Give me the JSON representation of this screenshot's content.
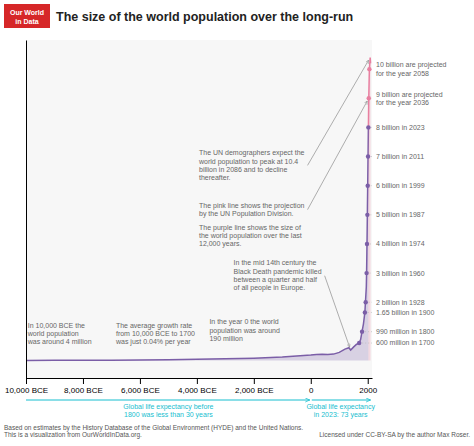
{
  "chart_data": {
    "type": "area",
    "title": "The size of the world population over the long-run",
    "xlim": [
      -10000,
      2150
    ],
    "ylim": [
      -600000000,
      11000000000
    ],
    "xticks": [
      {
        "value": -10000,
        "label": "10,000 BCE"
      },
      {
        "value": -8000,
        "label": "8,000 BCE"
      },
      {
        "value": -6000,
        "label": "6,000 BCE"
      },
      {
        "value": -4000,
        "label": "4,000 BCE"
      },
      {
        "value": -2000,
        "label": "2,000 BCE"
      },
      0,
      2000
    ],
    "tick_labels": "x",
    "grid": false,
    "series": [
      {
        "type": "area",
        "color": "#7b5ea7",
        "x": [
          -10000,
          -9000,
          -8000,
          -7000,
          -6000,
          -5000,
          -4000,
          -3000,
          -2000,
          -1000,
          0,
          200,
          400,
          600,
          800,
          1000,
          1200,
          1340,
          1400,
          1500,
          1600,
          1700,
          1750,
          1800,
          1850,
          1900,
          1950,
          1960,
          1970,
          1974,
          1980,
          1987,
          1990,
          1999,
          2000,
          2011,
          2023
        ],
        "values": [
          4000000,
          5000000,
          7000000,
          10000000,
          15000000,
          25000000,
          40000000,
          60000000,
          80000000,
          120000000,
          190000000,
          210000000,
          215000000,
          210000000,
          220000000,
          280000000,
          390000000,
          440000000,
          360000000,
          460000000,
          550000000,
          600000000,
          720000000,
          990000000,
          1260000000,
          1650000000,
          2520000000,
          3000000000,
          3700000000,
          4000000000,
          4430000000,
          5000000000,
          5300000000,
          6000000000,
          6100000000,
          7000000000,
          8000000000
        ]
      },
      {
        "type": "area",
        "color": "#e87fa0",
        "x": [
          2023,
          2036,
          2058,
          2086,
          2100
        ],
        "values": [
          8000000000,
          9000000000,
          10000000000,
          10400000000,
          10200000000
        ]
      },
      {
        "type": "scatter",
        "x": [
          1700,
          1800,
          1900,
          1928,
          1960,
          1974,
          1987,
          1999,
          2011,
          2023,
          2036,
          2058
        ],
        "values": [
          600000000,
          990000000,
          1650000000,
          2000000000,
          3000000000,
          4000000000,
          5000000000,
          6000000000,
          7000000000,
          8000000000,
          9000000000,
          10000000000
        ],
        "colors": [
          "#7b5ea7",
          "#7b5ea7",
          "#7b5ea7",
          "#7b5ea7",
          "#7b5ea7",
          "#7b5ea7",
          "#7b5ea7",
          "#7b5ea7",
          "#7b5ea7",
          "#7b5ea7",
          "#e87fa0",
          "#e87fa0"
        ],
        "data_labels": true,
        "value_labels": [
          "600 million in 1700",
          "990 million in 1800",
          "1.65 billion in 1900",
          "2 billion in 1928",
          "3 billion in 1960",
          "4 billion in 1974",
          "5 billion in 1987",
          "6 billion in 1999",
          "7 billion in 2011",
          "8 billion in 2023",
          "9 billion are projected\nfor the year 2036",
          "10 billion are projected\nfor the year 2058"
        ]
      }
    ],
    "annotations": [
      "In 10,000 BCE the\nworld population\nwas around 4 million",
      "The average growth rate\nfrom 10,000 BCE to 1700\nwas just 0.04% per year",
      "In the year 0 the world\npopulation was around\n190 million",
      "In the mid 14th century the\nBlack Death pandemic killed\nbetween a quarter and half\nof all people in Europe.",
      "The purple line shows the size of\nthe world population over the last\n12,000 years.",
      "The pink line shows the projection\nby the UN Population Division.",
      "The UN demographers expect the\nworld population to peak at 10.4\nbillion in 2086 and to decline\nthereafter.",
      "Global life expectancy before\n1800 was less than 30 years",
      "Global life expectancy\nin 2023: 73 years",
      "Our World",
      "in Data",
      "Based on estimates by the History Database of the Global Environment (HYDE) and the United Nations.\nThis is a visualization from OurWorldInData.org.",
      "Licensed under CC-BY-SA by the author Max Roser."
    ]
  }
}
